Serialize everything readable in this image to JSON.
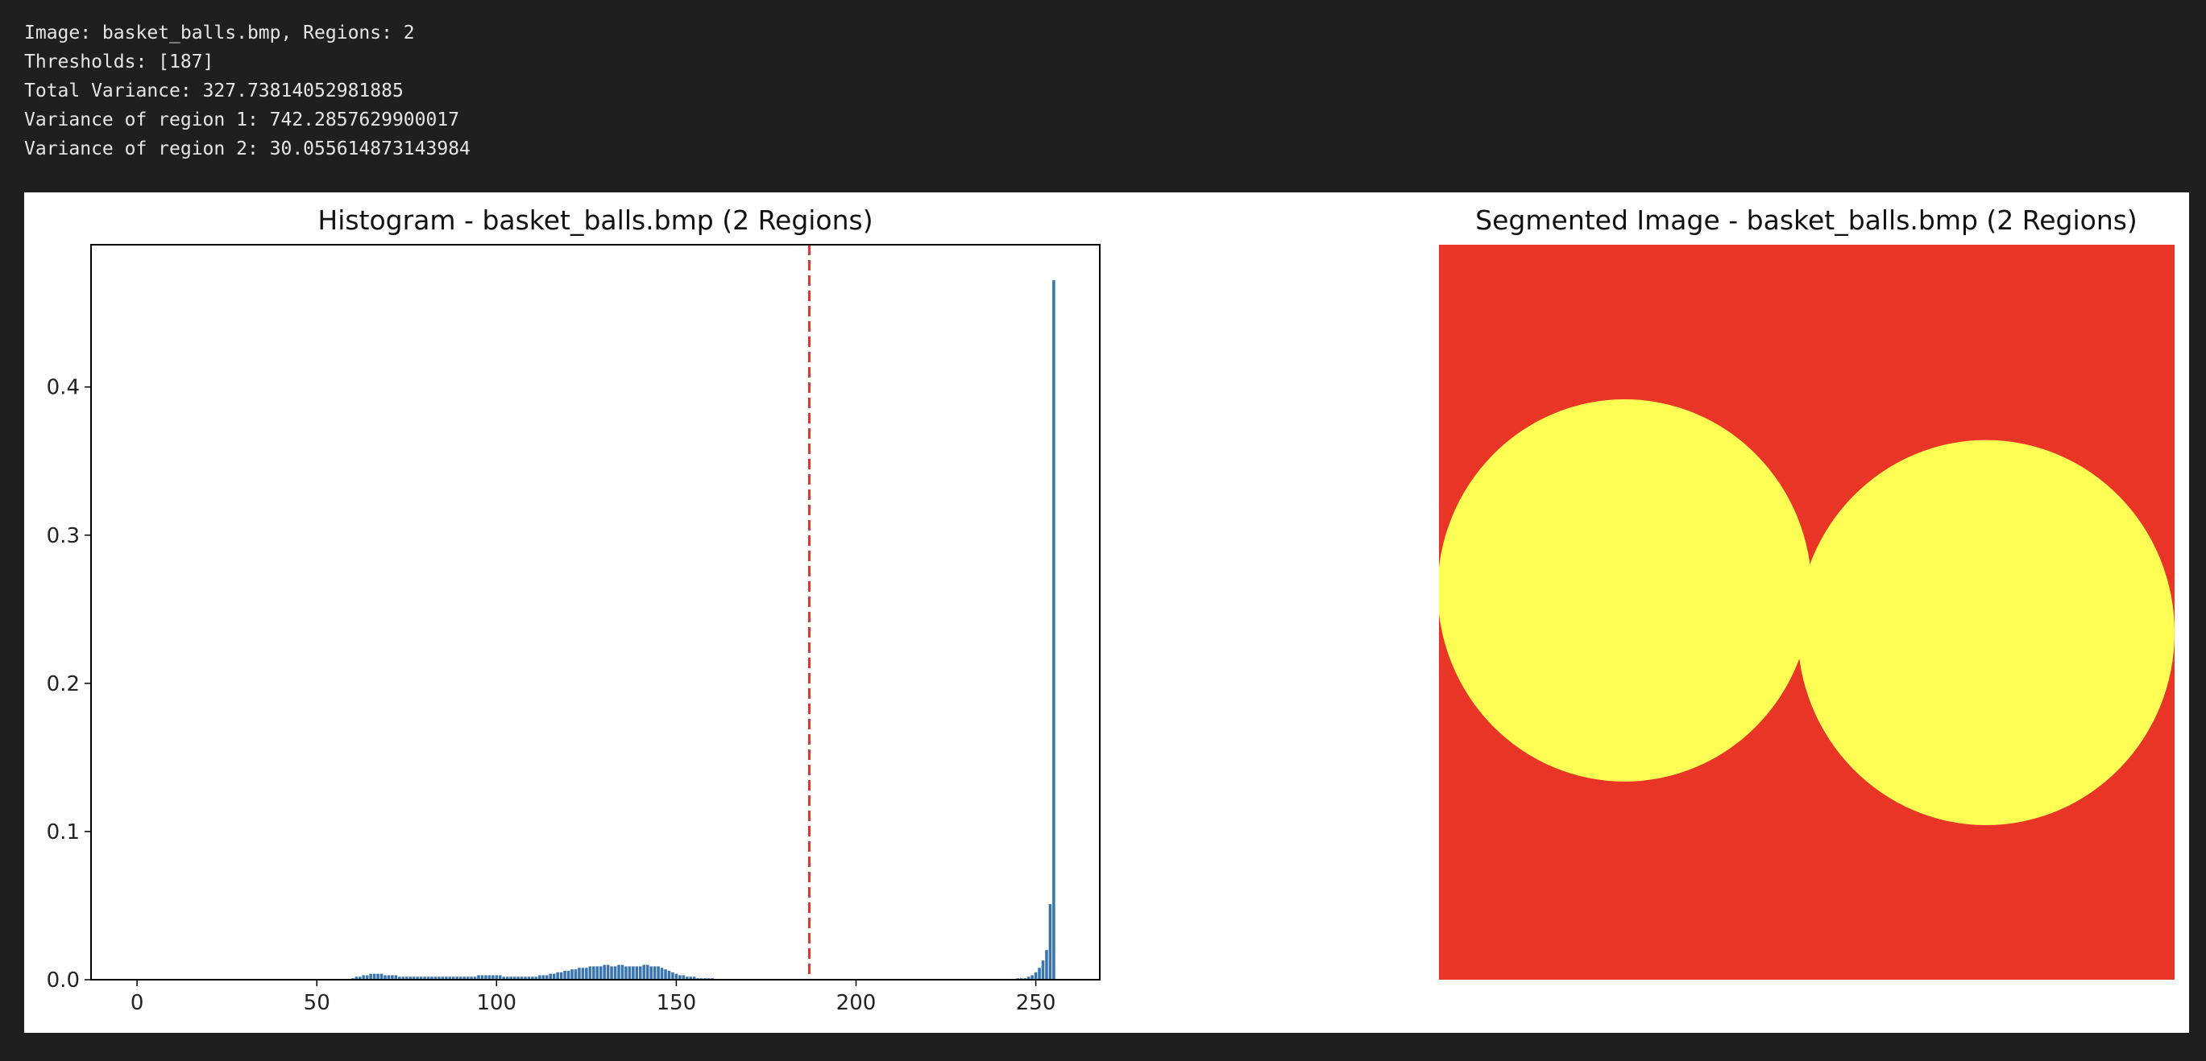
{
  "output_lines": [
    "Image: basket_balls.bmp, Regions: 2",
    "Thresholds: [187]",
    "Total Variance: 327.73814052981885",
    "Variance of region 1: 742.2857629900017",
    "Variance of region 2: 30.055614873143984"
  ],
  "chart_data": {
    "type": "bar",
    "title": "Histogram - basket_balls.bmp (2 Regions)",
    "x": [
      60,
      61,
      62,
      63,
      64,
      65,
      66,
      67,
      68,
      69,
      70,
      71,
      72,
      73,
      74,
      75,
      76,
      77,
      78,
      79,
      80,
      81,
      82,
      83,
      84,
      85,
      86,
      87,
      88,
      89,
      90,
      91,
      92,
      93,
      94,
      95,
      96,
      97,
      98,
      99,
      100,
      101,
      102,
      103,
      104,
      105,
      106,
      107,
      108,
      109,
      110,
      111,
      112,
      113,
      114,
      115,
      116,
      117,
      118,
      119,
      120,
      121,
      122,
      123,
      124,
      125,
      126,
      127,
      128,
      129,
      130,
      131,
      132,
      133,
      134,
      135,
      136,
      137,
      138,
      139,
      140,
      141,
      142,
      143,
      144,
      145,
      146,
      147,
      148,
      149,
      150,
      151,
      152,
      153,
      154,
      155,
      156,
      157,
      158,
      159,
      160,
      245,
      246,
      247,
      248,
      249,
      250,
      251,
      252,
      253,
      254,
      255
    ],
    "values": [
      0.001,
      0.002,
      0.002,
      0.003,
      0.003,
      0.004,
      0.004,
      0.004,
      0.004,
      0.003,
      0.003,
      0.003,
      0.003,
      0.002,
      0.002,
      0.002,
      0.002,
      0.002,
      0.002,
      0.002,
      0.002,
      0.002,
      0.002,
      0.002,
      0.002,
      0.002,
      0.002,
      0.002,
      0.002,
      0.002,
      0.002,
      0.002,
      0.002,
      0.002,
      0.002,
      0.003,
      0.003,
      0.003,
      0.003,
      0.003,
      0.003,
      0.003,
      0.002,
      0.002,
      0.002,
      0.002,
      0.002,
      0.002,
      0.002,
      0.002,
      0.002,
      0.002,
      0.003,
      0.003,
      0.003,
      0.004,
      0.004,
      0.005,
      0.005,
      0.006,
      0.006,
      0.007,
      0.007,
      0.008,
      0.008,
      0.008,
      0.009,
      0.009,
      0.009,
      0.009,
      0.01,
      0.01,
      0.009,
      0.009,
      0.01,
      0.01,
      0.009,
      0.009,
      0.009,
      0.009,
      0.009,
      0.01,
      0.01,
      0.009,
      0.009,
      0.009,
      0.008,
      0.007,
      0.006,
      0.005,
      0.004,
      0.003,
      0.003,
      0.002,
      0.002,
      0.002,
      0.001,
      0.001,
      0.001,
      0.001,
      0.001,
      0.001,
      0.001,
      0.001,
      0.002,
      0.003,
      0.005,
      0.008,
      0.013,
      0.02,
      0.051,
      0.472
    ],
    "color": "#3b75af",
    "xlim": [
      -12.8,
      267.8
    ],
    "ylim": [
      0,
      0.496
    ],
    "xticks": [
      0,
      50,
      100,
      150,
      200,
      250
    ],
    "yticks": [
      {
        "value": 0,
        "label": "0.0"
      },
      0.1,
      0.2,
      0.3,
      0.4
    ],
    "threshold": 187,
    "threshold_color": "#e8332a"
  },
  "segmented_image": {
    "title": "Segmented Image - basket_balls.bmp (2 Regions)"
  }
}
